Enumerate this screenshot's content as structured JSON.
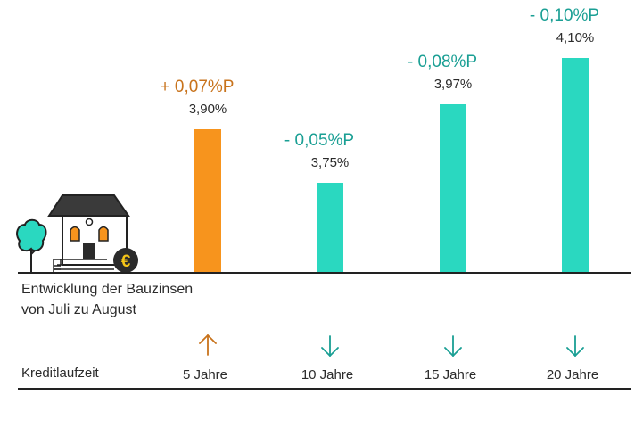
{
  "chart_data": {
    "type": "bar",
    "categories": [
      "5 Jahre",
      "10 Jahre",
      "15 Jahre",
      "20 Jahre"
    ],
    "values": [
      3.9,
      3.75,
      3.97,
      4.1
    ],
    "value_labels": [
      "3,90%",
      "3,75%",
      "3,97%",
      "4,10%"
    ],
    "changes": [
      "+ 0,07%P",
      "- 0,05%P",
      "- 0,08%P",
      "- 0,10%P"
    ],
    "directions": [
      "up",
      "down",
      "down",
      "down"
    ],
    "caption_lines": [
      "Entwicklung der Bauzinsen",
      "von Juli zu August"
    ],
    "row_label": "Kreditlaufzeit",
    "colors": {
      "up": "#f7941d",
      "down": "#2ad8c0",
      "up_text": "#c8731c",
      "down_text": "#1a9f94",
      "text": "#2b2b2b",
      "axis": "#222222",
      "euro": "#f5c518"
    }
  }
}
